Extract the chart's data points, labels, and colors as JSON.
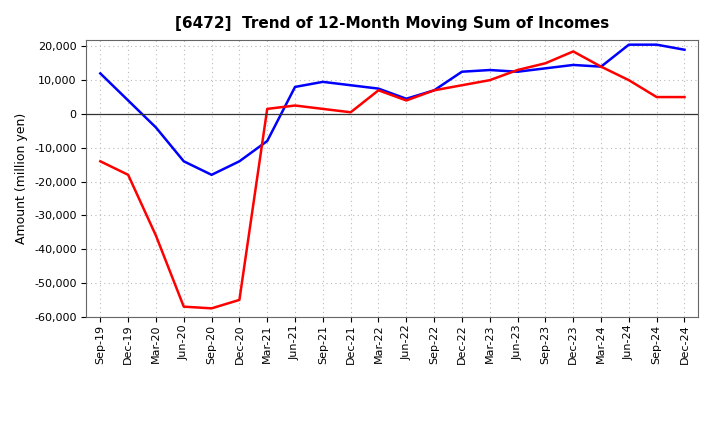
{
  "title": "[6472]  Trend of 12-Month Moving Sum of Incomes",
  "ylabel": "Amount (million yen)",
  "xlabels": [
    "Sep-19",
    "Dec-19",
    "Mar-20",
    "Jun-20",
    "Sep-20",
    "Dec-20",
    "Mar-21",
    "Jun-21",
    "Sep-21",
    "Dec-21",
    "Mar-22",
    "Jun-22",
    "Sep-22",
    "Dec-22",
    "Mar-23",
    "Jun-23",
    "Sep-23",
    "Dec-23",
    "Mar-24",
    "Jun-24",
    "Sep-24",
    "Dec-24"
  ],
  "ordinary_income": [
    12000,
    4000,
    -4000,
    -14000,
    -18000,
    -14000,
    -8000,
    8000,
    9500,
    8500,
    7500,
    4500,
    7000,
    12500,
    13000,
    12500,
    13500,
    14500,
    14000,
    20500,
    20500,
    19000
  ],
  "net_income": [
    -14000,
    -18000,
    -36000,
    -57000,
    -57500,
    -55000,
    1500,
    2500,
    1500,
    500,
    7000,
    4000,
    7000,
    8500,
    10000,
    13000,
    15000,
    18500,
    14000,
    10000,
    5000,
    5000
  ],
  "ordinary_color": "#0000ff",
  "net_color": "#ff0000",
  "ylim": [
    -60000,
    22000
  ],
  "yticks": [
    -60000,
    -50000,
    -40000,
    -30000,
    -20000,
    -10000,
    0,
    10000,
    20000
  ],
  "bg_color": "#ffffff",
  "plot_bg_color": "#ffffff",
  "grid_color": "#bbbbbb",
  "title_fontsize": 11,
  "ylabel_fontsize": 9,
  "tick_fontsize": 8
}
